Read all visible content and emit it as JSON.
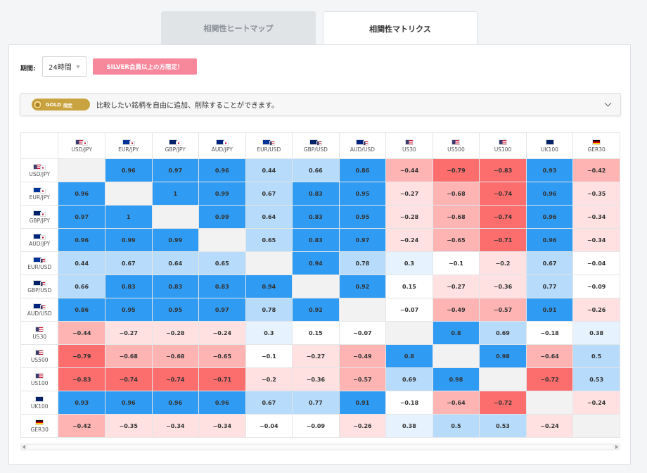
{
  "tabs": [
    {
      "label": "相関性ヒートマップ",
      "active": false
    },
    {
      "label": "相関性マトリクス",
      "active": true
    }
  ],
  "filter": {
    "period_label": "期間:",
    "period_value": "24時間",
    "silver_badge": "SILVER会員以上の方限定！"
  },
  "gold_notice": {
    "badge": "GOLD",
    "badge_suffix": "限定",
    "text": "比較したい銘柄を自由に追加、削除することができます。",
    "icon": "chevron-down-icon"
  },
  "colors": {
    "strong_positive": "#2f9bf3",
    "mid_positive": "#b7dbfa",
    "weak_positive": "#e6f2fd",
    "neutral": "#ffffff",
    "weak_negative": "#ffe1e1",
    "mid_negative": "#ffb4b4",
    "strong_negative": "#fc6d6d",
    "diagonal": "#f2f2f2"
  },
  "symbols": [
    {
      "code": "USD/JPY",
      "flag": "us-jp"
    },
    {
      "code": "EUR/JPY",
      "flag": "eu-jp"
    },
    {
      "code": "GBP/JPY",
      "flag": "gb-jp"
    },
    {
      "code": "AUD/JPY",
      "flag": "au-jp"
    },
    {
      "code": "EUR/USD",
      "flag": "eu-us"
    },
    {
      "code": "GBP/USD",
      "flag": "gb-us"
    },
    {
      "code": "AUD/USD",
      "flag": "au-us"
    },
    {
      "code": "US30",
      "flag": "us"
    },
    {
      "code": "US500",
      "flag": "us"
    },
    {
      "code": "US100",
      "flag": "us"
    },
    {
      "code": "UK100",
      "flag": "gb"
    },
    {
      "code": "GER30",
      "flag": "de"
    }
  ],
  "matrix": [
    [
      null,
      "0.96",
      "0.97",
      "0.96",
      "0.44",
      "0.66",
      "0.86",
      "-0.44",
      "-0.79",
      "-0.83",
      "0.93",
      "-0.42"
    ],
    [
      "0.96",
      null,
      "1",
      "0.99",
      "0.67",
      "0.83",
      "0.95",
      "-0.27",
      "-0.68",
      "-0.74",
      "0.96",
      "-0.35"
    ],
    [
      "0.97",
      "1",
      null,
      "0.99",
      "0.64",
      "0.83",
      "0.95",
      "-0.28",
      "-0.68",
      "-0.74",
      "0.96",
      "-0.34"
    ],
    [
      "0.96",
      "0.99",
      "0.99",
      null,
      "0.65",
      "0.83",
      "0.97",
      "-0.24",
      "-0.65",
      "-0.71",
      "0.96",
      "-0.34"
    ],
    [
      "0.44",
      "0.67",
      "0.64",
      "0.65",
      null,
      "0.94",
      "0.78",
      "0.3",
      "-0.1",
      "-0.2",
      "0.67",
      "-0.04"
    ],
    [
      "0.66",
      "0.83",
      "0.83",
      "0.83",
      "0.94",
      null,
      "0.92",
      "0.15",
      "-0.27",
      "-0.36",
      "0.77",
      "-0.09"
    ],
    [
      "0.86",
      "0.95",
      "0.95",
      "0.97",
      "0.78",
      "0.92",
      null,
      "-0.07",
      "-0.49",
      "-0.57",
      "0.91",
      "-0.26"
    ],
    [
      "-0.44",
      "-0.27",
      "-0.28",
      "-0.24",
      "0.3",
      "0.15",
      "-0.07",
      null,
      "0.8",
      "0.69",
      "-0.18",
      "0.38"
    ],
    [
      "-0.79",
      "-0.68",
      "-0.68",
      "-0.65",
      "-0.1",
      "-0.27",
      "-0.49",
      "0.8",
      null,
      "0.98",
      "-0.64",
      "0.5"
    ],
    [
      "-0.83",
      "-0.74",
      "-0.74",
      "-0.71",
      "-0.2",
      "-0.36",
      "-0.57",
      "0.69",
      "0.98",
      null,
      "-0.72",
      "0.53"
    ],
    [
      "0.93",
      "0.96",
      "0.96",
      "0.96",
      "0.67",
      "0.77",
      "0.91",
      "-0.18",
      "-0.64",
      "-0.72",
      null,
      "-0.24"
    ],
    [
      "-0.42",
      "-0.35",
      "-0.34",
      "-0.34",
      "-0.04",
      "-0.09",
      "-0.26",
      "0.38",
      "0.5",
      "0.53",
      "-0.24",
      null
    ]
  ]
}
